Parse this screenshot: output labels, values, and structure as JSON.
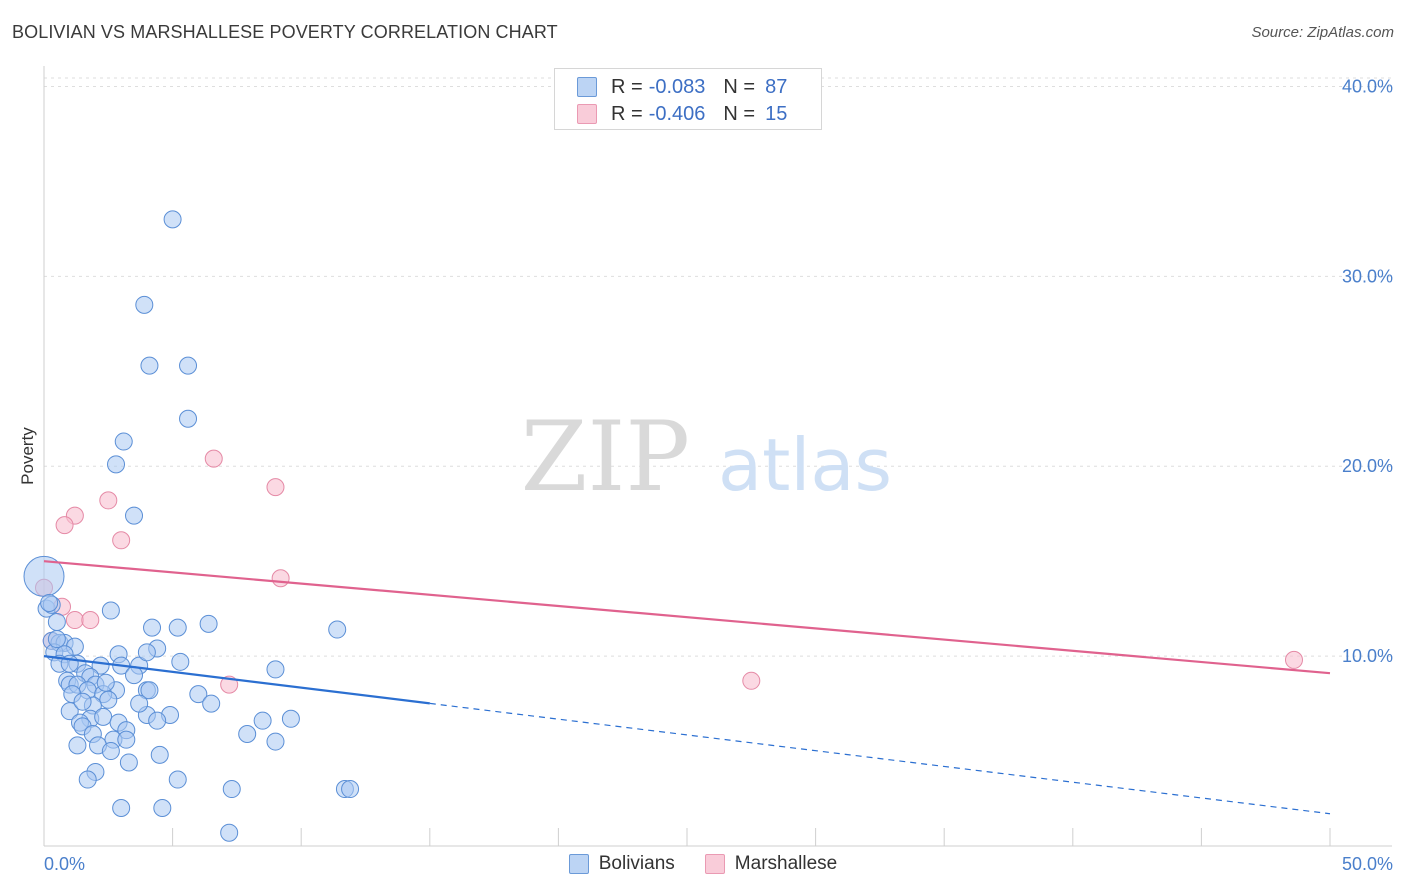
{
  "header": {
    "title": "BOLIVIAN VS MARSHALLESE POVERTY CORRELATION CHART",
    "source": "Source: ZipAtlas.com"
  },
  "watermark": {
    "zip": "ZIP",
    "atlas": "atlas"
  },
  "legend": {
    "rows": [
      {
        "r_label": "R =",
        "r_value": "-0.083",
        "n_label": "N =",
        "n_value": "87"
      },
      {
        "r_label": "R =",
        "r_value": "-0.406",
        "n_label": "N =",
        "n_value": "15"
      }
    ]
  },
  "bottom_legend": {
    "bolivians": "Bolivians",
    "marshallese": "Marshallese"
  },
  "colors": {
    "bolivians_fill": "#a9c8f2",
    "bolivians_stroke": "#5b8fd6",
    "bolivians_line": "#2b6fd1",
    "marshallese_fill": "#f8c0d0",
    "marshallese_stroke": "#e58aa6",
    "marshallese_line": "#e0628e",
    "tick_text": "#4a7fcb"
  },
  "chart_data": {
    "type": "scatter",
    "title": "BOLIVIAN VS MARSHALLESE POVERTY CORRELATION CHART",
    "xlabel": "",
    "ylabel": "Poverty",
    "xlim": [
      0,
      50
    ],
    "ylim": [
      0,
      41.5
    ],
    "x_tick_labels": [
      "0.0%",
      "50.0%"
    ],
    "y_ticks": [
      10,
      20,
      30,
      40
    ],
    "y_tick_labels": [
      "10.0%",
      "20.0%",
      "30.0%",
      "40.0%"
    ],
    "grid": true,
    "series": [
      {
        "name": "Bolivians",
        "r": -0.083,
        "n": 87,
        "trend": {
          "x0": 0,
          "y0": 10.0,
          "x_solid_end": 15,
          "x1": 50,
          "y1": 1.7
        },
        "points": [
          [
            5.0,
            33.0
          ],
          [
            3.9,
            28.5
          ],
          [
            4.1,
            25.3
          ],
          [
            5.6,
            25.3
          ],
          [
            5.6,
            22.5
          ],
          [
            3.1,
            21.3
          ],
          [
            2.8,
            20.1
          ],
          [
            3.5,
            17.4
          ],
          [
            0.0,
            14.2
          ],
          [
            0.1,
            12.5
          ],
          [
            0.3,
            12.7
          ],
          [
            2.6,
            12.4
          ],
          [
            0.5,
            11.8
          ],
          [
            4.2,
            11.5
          ],
          [
            5.2,
            11.5
          ],
          [
            6.4,
            11.7
          ],
          [
            11.4,
            11.4
          ],
          [
            0.3,
            10.8
          ],
          [
            0.6,
            10.7
          ],
          [
            0.8,
            10.7
          ],
          [
            1.2,
            10.5
          ],
          [
            4.4,
            10.4
          ],
          [
            0.4,
            10.2
          ],
          [
            0.8,
            10.1
          ],
          [
            2.9,
            10.1
          ],
          [
            0.6,
            9.6
          ],
          [
            1.3,
            9.6
          ],
          [
            2.2,
            9.5
          ],
          [
            3.0,
            9.5
          ],
          [
            3.7,
            9.5
          ],
          [
            5.3,
            9.7
          ],
          [
            9.0,
            9.3
          ],
          [
            1.6,
            9.1
          ],
          [
            1.8,
            8.9
          ],
          [
            3.5,
            9.0
          ],
          [
            0.9,
            8.7
          ],
          [
            1.0,
            8.5
          ],
          [
            1.3,
            8.5
          ],
          [
            2.0,
            8.5
          ],
          [
            1.7,
            8.2
          ],
          [
            2.8,
            8.2
          ],
          [
            1.1,
            8.0
          ],
          [
            2.3,
            8.0
          ],
          [
            4.0,
            8.2
          ],
          [
            4.1,
            8.2
          ],
          [
            6.0,
            8.0
          ],
          [
            2.5,
            7.7
          ],
          [
            6.5,
            7.5
          ],
          [
            1.9,
            7.4
          ],
          [
            1.0,
            7.1
          ],
          [
            1.8,
            6.7
          ],
          [
            2.3,
            6.8
          ],
          [
            4.0,
            6.9
          ],
          [
            4.9,
            6.9
          ],
          [
            8.5,
            6.6
          ],
          [
            9.6,
            6.7
          ],
          [
            1.4,
            6.5
          ],
          [
            1.5,
            6.3
          ],
          [
            2.9,
            6.5
          ],
          [
            3.2,
            6.1
          ],
          [
            4.4,
            6.6
          ],
          [
            1.9,
            5.9
          ],
          [
            7.9,
            5.9
          ],
          [
            2.7,
            5.6
          ],
          [
            3.2,
            5.6
          ],
          [
            9.0,
            5.5
          ],
          [
            1.3,
            5.3
          ],
          [
            2.1,
            5.3
          ],
          [
            2.6,
            5.0
          ],
          [
            4.5,
            4.8
          ],
          [
            3.3,
            4.4
          ],
          [
            2.0,
            3.9
          ],
          [
            1.7,
            3.5
          ],
          [
            5.2,
            3.5
          ],
          [
            7.3,
            3.0
          ],
          [
            11.7,
            3.0
          ],
          [
            11.9,
            3.0
          ],
          [
            3.0,
            2.0
          ],
          [
            4.6,
            2.0
          ],
          [
            7.2,
            0.7
          ],
          [
            0.2,
            12.8
          ],
          [
            0.5,
            10.9
          ],
          [
            1.0,
            9.6
          ],
          [
            2.4,
            8.6
          ],
          [
            1.5,
            7.6
          ],
          [
            3.7,
            7.5
          ],
          [
            4.0,
            10.2
          ]
        ]
      },
      {
        "name": "Marshallese",
        "r": -0.406,
        "n": 15,
        "trend": {
          "x0": 0,
          "y0": 15.0,
          "x1": 50,
          "y1": 9.1
        },
        "points": [
          [
            6.6,
            20.4
          ],
          [
            9.0,
            18.9
          ],
          [
            2.5,
            18.2
          ],
          [
            1.2,
            17.4
          ],
          [
            0.8,
            16.9
          ],
          [
            3.0,
            16.1
          ],
          [
            9.2,
            14.1
          ],
          [
            0.0,
            13.6
          ],
          [
            0.7,
            12.6
          ],
          [
            1.2,
            11.9
          ],
          [
            1.8,
            11.9
          ],
          [
            0.3,
            10.8
          ],
          [
            7.2,
            8.5
          ],
          [
            27.5,
            8.7
          ],
          [
            48.6,
            9.8
          ]
        ]
      }
    ]
  }
}
